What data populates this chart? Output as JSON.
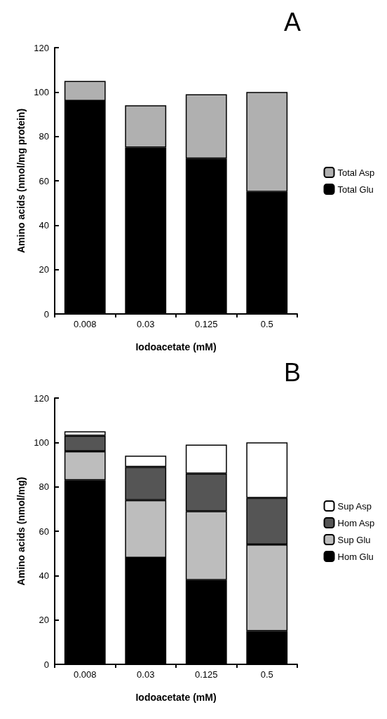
{
  "chart_data": [
    {
      "type": "bar",
      "title": "A",
      "xlabel": "Iodoacetate (mM)",
      "ylabel": "Amino acids (nmol/mg protein)",
      "categories": [
        "0.008",
        "0.03",
        "0.125",
        "0.5"
      ],
      "stacked": true,
      "ylim": [
        0,
        120
      ],
      "yticks": [
        0,
        20,
        40,
        60,
        80,
        100,
        120
      ],
      "grid": false,
      "legend": "right",
      "series": [
        {
          "name": "Total Glu",
          "color": "#000000",
          "values": [
            96,
            75,
            70,
            55
          ]
        },
        {
          "name": "Total Asp",
          "color": "#b0b0b0",
          "values": [
            9,
            19,
            29,
            45
          ]
        }
      ]
    },
    {
      "type": "bar",
      "title": "B",
      "xlabel": "Iodoacetate (mM)",
      "ylabel": "Amino acids (nmol/mg)",
      "categories": [
        "0.008",
        "0.03",
        "0.125",
        "0.5"
      ],
      "stacked": true,
      "ylim": [
        0,
        120
      ],
      "yticks": [
        0,
        20,
        40,
        60,
        80,
        100,
        120
      ],
      "grid": false,
      "legend": "right",
      "series": [
        {
          "name": "Hom Glu",
          "color": "#000000",
          "values": [
            83,
            48,
            38,
            15
          ]
        },
        {
          "name": "Sup Glu",
          "color": "#bdbdbd",
          "values": [
            13,
            26,
            31,
            39
          ]
        },
        {
          "name": "Hom Asp",
          "color": "#555555",
          "values": [
            7,
            15,
            17,
            21
          ]
        },
        {
          "name": "Sup Asp",
          "color": "#ffffff",
          "values": [
            2,
            5,
            13,
            25
          ]
        }
      ]
    }
  ]
}
